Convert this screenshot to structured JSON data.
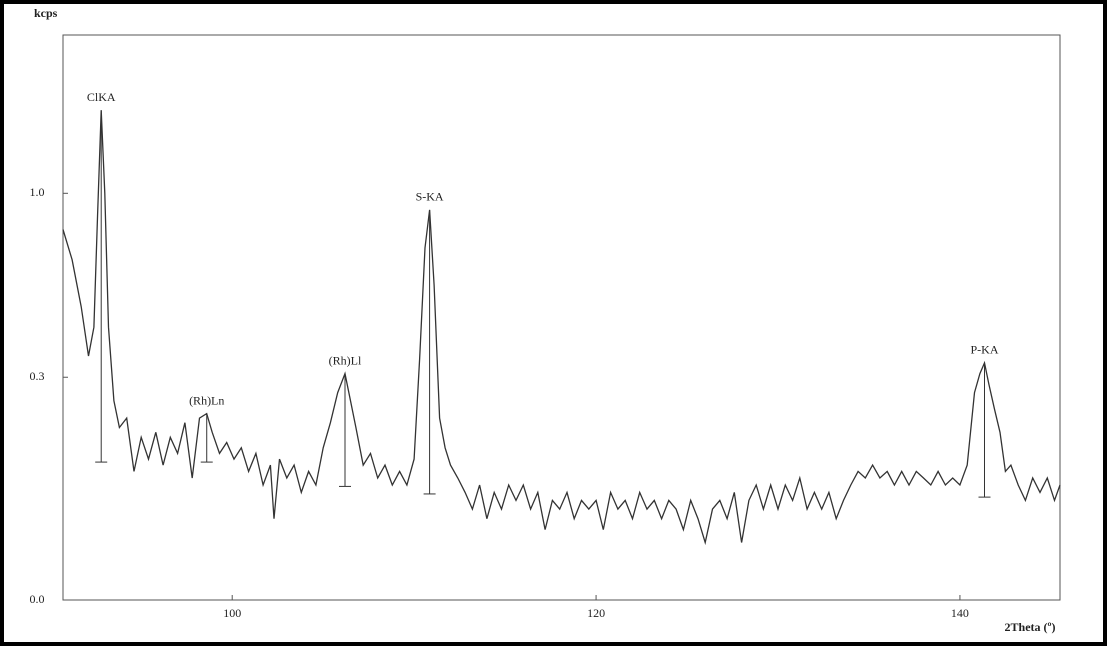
{
  "chart_data": {
    "type": "line",
    "y_label": "kcps",
    "x_label": "2Theta (º)",
    "yscale": "sqrt",
    "grid": false,
    "xlim": [
      90.7,
      145.5
    ],
    "xticks": [
      100,
      120,
      140
    ],
    "ylim": [
      0,
      1.93
    ],
    "yticks": [
      {
        "value": 0,
        "label": "0.0"
      },
      0.3,
      {
        "value": 1,
        "label": "1.0"
      }
    ],
    "color": "#333333",
    "x": [
      90.7,
      91.2,
      91.7,
      92.1,
      92.4,
      92.6,
      92.8,
      93.0,
      93.2,
      93.5,
      93.8,
      94.2,
      94.6,
      95.0,
      95.4,
      95.8,
      96.2,
      96.6,
      97.0,
      97.4,
      97.8,
      98.2,
      98.6,
      98.9,
      99.3,
      99.7,
      100.1,
      100.5,
      100.9,
      101.3,
      101.7,
      102.1,
      102.3,
      102.6,
      103.0,
      103.4,
      103.8,
      104.2,
      104.6,
      105.0,
      105.4,
      105.8,
      106.2,
      106.5,
      106.8,
      107.2,
      107.6,
      108.0,
      108.4,
      108.8,
      109.2,
      109.6,
      110.0,
      110.3,
      110.6,
      110.85,
      111.1,
      111.4,
      111.7,
      112.0,
      112.4,
      112.8,
      113.2,
      113.6,
      114.0,
      114.4,
      114.8,
      115.2,
      115.6,
      116.0,
      116.4,
      116.8,
      117.2,
      117.6,
      118.0,
      118.4,
      118.8,
      119.2,
      119.6,
      120.0,
      120.4,
      120.8,
      121.2,
      121.6,
      122.0,
      122.4,
      122.8,
      123.2,
      123.6,
      124.0,
      124.4,
      124.8,
      125.2,
      125.6,
      126.0,
      126.4,
      126.8,
      127.2,
      127.6,
      128.0,
      128.4,
      128.8,
      129.2,
      129.6,
      130.0,
      130.4,
      130.8,
      131.2,
      131.6,
      132.0,
      132.4,
      132.8,
      133.2,
      133.6,
      134.0,
      134.4,
      134.8,
      135.2,
      135.6,
      136.0,
      136.4,
      136.8,
      137.2,
      137.6,
      138.0,
      138.4,
      138.8,
      139.2,
      139.6,
      140.0,
      140.4,
      140.8,
      141.1,
      141.35,
      141.6,
      141.9,
      142.2,
      142.5,
      142.8,
      143.2,
      143.6,
      144.0,
      144.4,
      144.8,
      145.2,
      145.5
    ],
    "values": [
      0.83,
      0.7,
      0.52,
      0.36,
      0.45,
      0.9,
      1.45,
      1.0,
      0.45,
      0.24,
      0.18,
      0.2,
      0.1,
      0.16,
      0.12,
      0.17,
      0.11,
      0.16,
      0.13,
      0.19,
      0.09,
      0.2,
      0.21,
      0.17,
      0.13,
      0.15,
      0.12,
      0.14,
      0.1,
      0.13,
      0.08,
      0.11,
      0.04,
      0.12,
      0.09,
      0.11,
      0.07,
      0.1,
      0.08,
      0.14,
      0.19,
      0.26,
      0.31,
      0.24,
      0.18,
      0.11,
      0.13,
      0.09,
      0.11,
      0.08,
      0.1,
      0.08,
      0.12,
      0.35,
      0.75,
      0.92,
      0.6,
      0.2,
      0.14,
      0.11,
      0.09,
      0.07,
      0.05,
      0.08,
      0.04,
      0.07,
      0.05,
      0.08,
      0.06,
      0.08,
      0.05,
      0.07,
      0.03,
      0.06,
      0.05,
      0.07,
      0.04,
      0.06,
      0.05,
      0.06,
      0.03,
      0.07,
      0.05,
      0.06,
      0.04,
      0.07,
      0.05,
      0.06,
      0.04,
      0.06,
      0.05,
      0.03,
      0.06,
      0.04,
      0.02,
      0.05,
      0.06,
      0.04,
      0.07,
      0.02,
      0.06,
      0.08,
      0.05,
      0.08,
      0.05,
      0.08,
      0.06,
      0.09,
      0.05,
      0.07,
      0.05,
      0.07,
      0.04,
      0.06,
      0.08,
      0.1,
      0.09,
      0.11,
      0.09,
      0.1,
      0.08,
      0.1,
      0.08,
      0.1,
      0.09,
      0.08,
      0.1,
      0.08,
      0.09,
      0.08,
      0.11,
      0.26,
      0.31,
      0.34,
      0.28,
      0.22,
      0.17,
      0.1,
      0.11,
      0.08,
      0.06,
      0.09,
      0.07,
      0.09,
      0.06,
      0.08
    ],
    "annotations": [
      {
        "text": "ClKA",
        "x": 92.8,
        "y": 1.45,
        "base": 0.115
      },
      {
        "text": "(Rh)Ln",
        "x": 98.6,
        "y": 0.21,
        "base": 0.115
      },
      {
        "text": "(Rh)Ll",
        "x": 106.2,
        "y": 0.31,
        "base": 0.078
      },
      {
        "text": "S-KA",
        "x": 110.85,
        "y": 0.92,
        "base": 0.068
      },
      {
        "text": "P-KA",
        "x": 141.35,
        "y": 0.34,
        "base": 0.064
      }
    ]
  }
}
